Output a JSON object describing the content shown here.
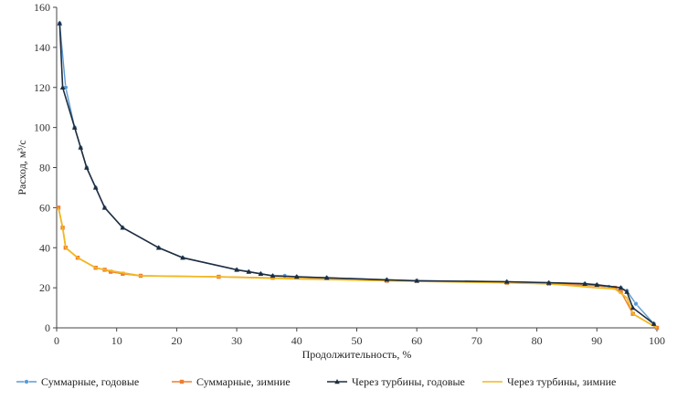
{
  "chart_data": {
    "type": "line",
    "title": "",
    "xlabel": "Продолжительность, %",
    "ylabel": "Расход, м³/с",
    "xlim": [
      0,
      100
    ],
    "ylim": [
      0,
      160
    ],
    "xticks": [
      0,
      10,
      20,
      30,
      40,
      50,
      60,
      70,
      80,
      90,
      100
    ],
    "yticks": [
      0,
      20,
      40,
      60,
      80,
      100,
      120,
      140,
      160
    ],
    "grid": false,
    "legend_position": "bottom",
    "series": [
      {
        "name": "Суммарные, годовые",
        "color": "#5b9bd5",
        "marker": "circle",
        "x": [
          0.5,
          1.5,
          3,
          4,
          5,
          6.5,
          8,
          11,
          17,
          21,
          30,
          32,
          34,
          36,
          38,
          40,
          45,
          55,
          60,
          75,
          82,
          88,
          90,
          92,
          94,
          95,
          96.5,
          99.5
        ],
        "y": [
          152,
          120,
          100,
          90,
          80,
          70,
          60,
          50,
          40,
          35,
          29,
          28,
          27,
          26,
          26,
          25.5,
          25,
          24,
          23.5,
          23,
          22.5,
          22,
          21.5,
          20.5,
          20,
          18.5,
          12,
          2
        ]
      },
      {
        "name": "Суммарные, зимние",
        "color": "#ed7d31",
        "marker": "square",
        "x": [
          0.3,
          1,
          1.5,
          3.5,
          6.5,
          8,
          9,
          11,
          14,
          27,
          36,
          55,
          60,
          75,
          82,
          90,
          93,
          94,
          96,
          100
        ],
        "y": [
          60,
          50,
          40,
          35,
          30,
          29,
          28,
          27,
          26,
          25.5,
          25,
          23.5,
          23.5,
          22.5,
          22,
          21,
          20,
          18,
          7,
          0
        ]
      },
      {
        "name": "Через турбины, годовые",
        "color": "#1f2d3d",
        "marker": "triangle",
        "x": [
          0.5,
          1,
          3,
          4,
          5,
          6.5,
          8,
          11,
          17,
          21,
          30,
          32,
          34,
          36,
          40,
          45,
          55,
          60,
          75,
          82,
          88,
          90,
          94,
          95,
          96,
          99.5
        ],
        "y": [
          152,
          120,
          100,
          90,
          80,
          70,
          60,
          50,
          40,
          35,
          29,
          28,
          27,
          26,
          25.5,
          25,
          24,
          23.5,
          23,
          22.5,
          22,
          21.5,
          20,
          18,
          10,
          2
        ]
      },
      {
        "name": "Через турбины, зимние",
        "color": "#f2b722",
        "marker": "none",
        "x": [
          0.3,
          1,
          1.5,
          3.5,
          6.5,
          8,
          10,
          14,
          27,
          40,
          55,
          75,
          82,
          90,
          93,
          95,
          96,
          100
        ],
        "y": [
          60,
          50,
          40,
          35,
          30,
          29,
          28,
          26,
          25.5,
          24.5,
          23.5,
          22.5,
          22,
          20,
          19.5,
          15,
          7,
          0
        ]
      }
    ]
  }
}
